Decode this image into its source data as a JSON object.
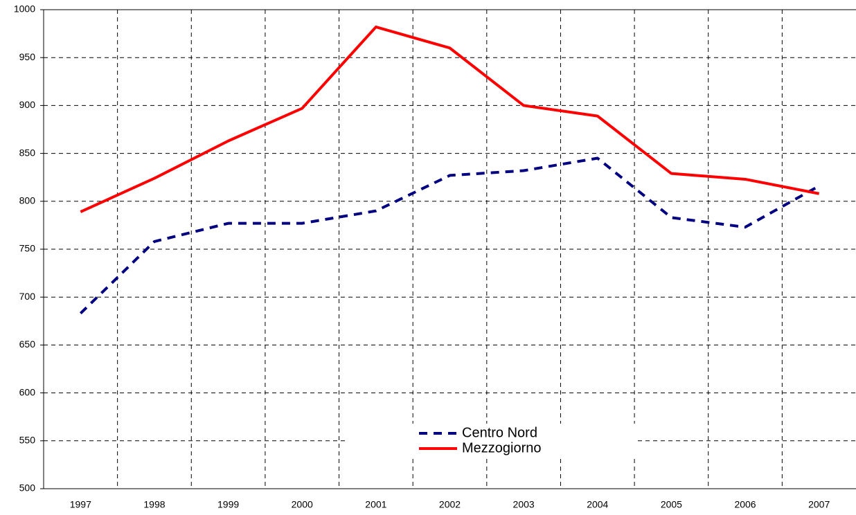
{
  "chart_data": {
    "type": "line",
    "categories": [
      "1997",
      "1998",
      "1999",
      "2000",
      "2001",
      "2002",
      "2003",
      "2004",
      "2005",
      "2006",
      "2007"
    ],
    "series": [
      {
        "name": "Centro Nord",
        "color": "#000080",
        "dash": true,
        "values": [
          683,
          758,
          777,
          777,
          790,
          827,
          832,
          845,
          783,
          773,
          816
        ]
      },
      {
        "name": "Mezzogiorno",
        "color": "#ff0000",
        "dash": false,
        "values": [
          789,
          824,
          863,
          897,
          982,
          960,
          900,
          889,
          829,
          823,
          808
        ]
      }
    ],
    "ylim": [
      500,
      1000
    ],
    "yticks": [
      500,
      550,
      600,
      650,
      700,
      750,
      800,
      850,
      900,
      950,
      1000
    ],
    "grid": true,
    "legend": "lower center"
  }
}
